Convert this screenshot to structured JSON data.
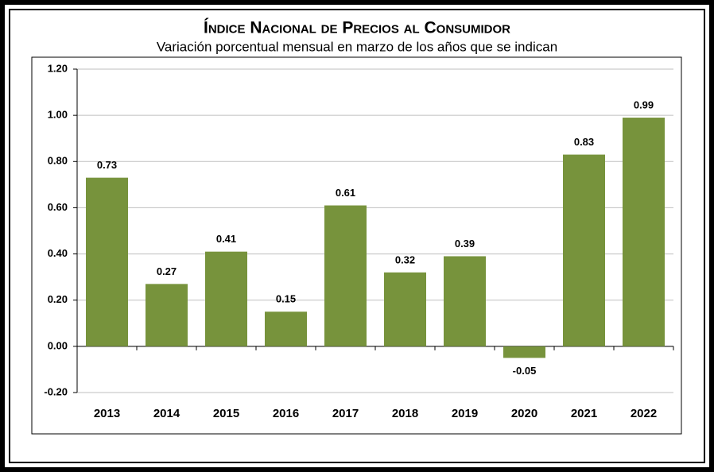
{
  "chart_data": {
    "type": "bar",
    "title": "Índice Nacional de Precios al Consumidor",
    "subtitle": "Variación porcentual mensual en marzo de los años que se indican",
    "categories": [
      "2013",
      "2014",
      "2015",
      "2016",
      "2017",
      "2018",
      "2019",
      "2020",
      "2021",
      "2022"
    ],
    "values": [
      0.73,
      0.27,
      0.41,
      0.15,
      0.61,
      0.32,
      0.39,
      -0.05,
      0.83,
      0.99
    ],
    "color": "#77933c",
    "ylim": [
      -0.2,
      1.2
    ],
    "yticks": [
      {
        "value": -0.2,
        "label": "-0.20"
      },
      {
        "value": 0,
        "label": "0.00"
      },
      {
        "value": 0.2,
        "label": "0.20"
      },
      {
        "value": 0.4,
        "label": "0.40"
      },
      {
        "value": 0.6,
        "label": "0.60"
      },
      {
        "value": 0.8,
        "label": "0.80"
      },
      {
        "value": 1,
        "label": "1.00"
      },
      {
        "value": 1.2,
        "label": "1.20"
      }
    ],
    "grid": true
  }
}
